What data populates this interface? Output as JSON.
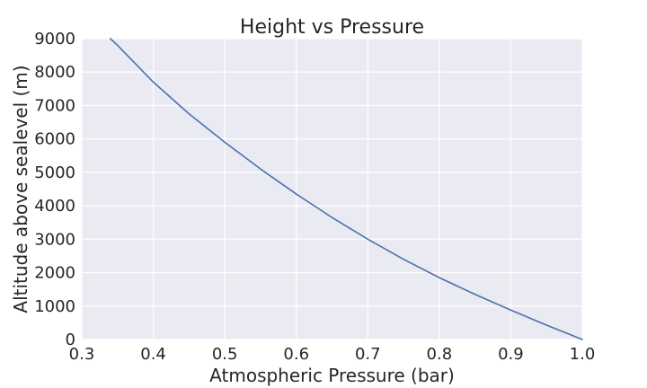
{
  "chart_data": {
    "type": "line",
    "title": "Height vs Pressure",
    "xlabel": "Atmospheric Pressure (bar)",
    "ylabel": "Altitude above sealevel (m)",
    "xlim": [
      0.3,
      1.0
    ],
    "ylim": [
      0,
      9000
    ],
    "x_ticks": [
      "0.3",
      "0.4",
      "0.5",
      "0.6",
      "0.7",
      "0.8",
      "0.9",
      "1.0"
    ],
    "y_ticks": [
      "0",
      "1000",
      "2000",
      "3000",
      "4000",
      "5000",
      "6000",
      "7000",
      "8000",
      "9000"
    ],
    "grid": true,
    "background_color": "#eaeaf2",
    "grid_color": "#ffffff",
    "series": [
      {
        "color": "#4c72b0",
        "x": [
          0.34,
          0.35,
          0.4,
          0.45,
          0.5,
          0.55,
          0.6,
          0.65,
          0.7,
          0.75,
          0.8,
          0.85,
          0.9,
          0.95,
          1.0
        ],
        "y": [
          9000,
          8800,
          7700,
          6750,
          5900,
          5100,
          4350,
          3650,
          3000,
          2400,
          1850,
          1350,
          880,
          430,
          0
        ]
      }
    ]
  }
}
